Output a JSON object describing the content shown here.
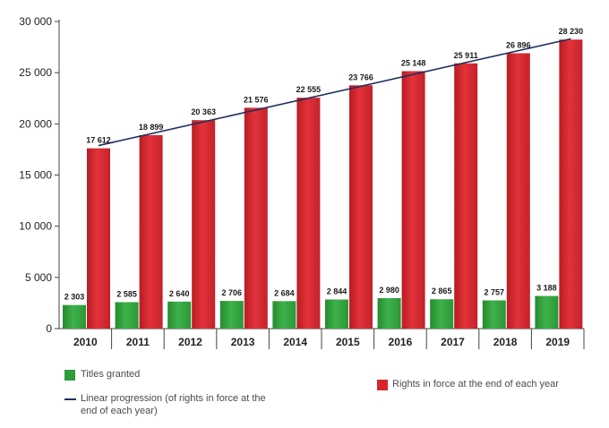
{
  "chart_data": {
    "type": "bar",
    "categories": [
      "2010",
      "2011",
      "2012",
      "2013",
      "2014",
      "2015",
      "2016",
      "2017",
      "2018",
      "2019"
    ],
    "series": [
      {
        "name": "Titles granted",
        "color": "#2e9c3a",
        "values": [
          2303,
          2585,
          2640,
          2706,
          2684,
          2844,
          2980,
          2865,
          2757,
          3188
        ],
        "labels": [
          "2 303",
          "2 585",
          "2 640",
          "2 706",
          "2 684",
          "2 844",
          "2 980",
          "2 865",
          "2 757",
          "3 188"
        ]
      },
      {
        "name": "Rights in force at the end of each year",
        "color": "#d9242b",
        "values": [
          17612,
          18899,
          20363,
          21576,
          22555,
          23766,
          25148,
          25911,
          26896,
          28230
        ],
        "labels": [
          "17 612",
          "18 899",
          "20 363",
          "21 576",
          "22 555",
          "23 766",
          "25 148",
          "25 911",
          "26 896",
          "28 230"
        ]
      }
    ],
    "line": {
      "name": "Linear progression (of rights in force at the end of each year)",
      "color": "#1f2f5c"
    },
    "yticks": [
      0,
      5000,
      10000,
      15000,
      20000,
      25000,
      30000
    ],
    "ytick_labels": [
      "0",
      "5 000",
      "10 000",
      "15 000",
      "20 000",
      "25 000",
      "30 000"
    ],
    "ylim": [
      0,
      30000
    ],
    "grid": false,
    "legend": {
      "titles_granted": "Titles granted",
      "linear_progression": "Linear progression (of rights in force at the end of each year)",
      "rights_in_force": "Rights in force at the end of each year"
    }
  }
}
